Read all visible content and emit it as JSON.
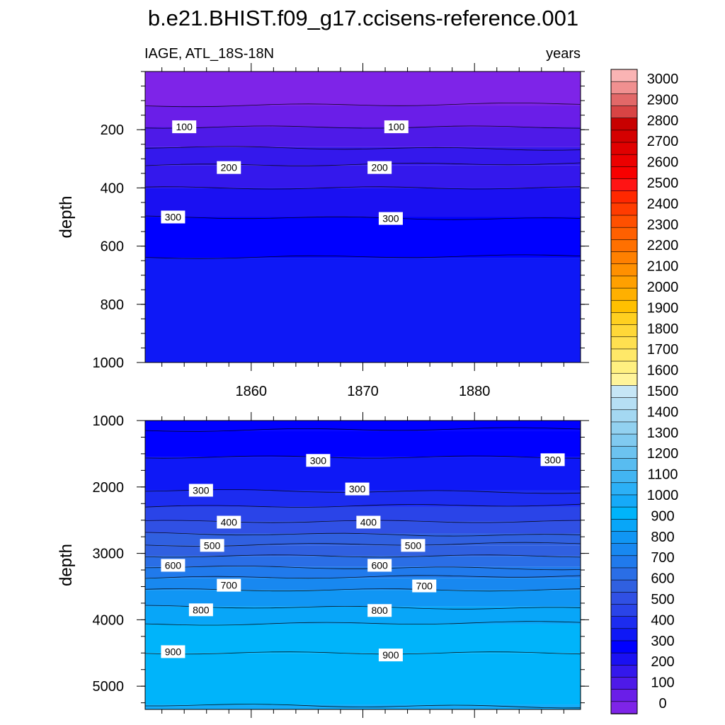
{
  "chart_data": {
    "type": "contour",
    "title": "b.e21.BHIST.f09_g17.ccisens-reference.001",
    "panels": [
      {
        "left_label": "IAGE, ATL_18S-18N",
        "right_label": "years",
        "ylabel": "depth",
        "ylim": [
          1000,
          0
        ],
        "yticks": [
          200,
          400,
          600,
          800,
          1000
        ],
        "xlim": [
          1850.5,
          1889.5
        ],
        "xticks": [
          "1860",
          "1870",
          "1880"
        ],
        "levels": [
          0,
          50,
          100,
          150,
          200,
          250,
          300,
          350
        ],
        "boundaries_depth": [
          118,
          191,
          260,
          323,
          400,
          500,
          640
        ],
        "contour_labels": [
          {
            "text": "100",
            "year": 1854,
            "depth": 190
          },
          {
            "text": "100",
            "year": 1873,
            "depth": 190
          },
          {
            "text": "200",
            "year": 1858,
            "depth": 330
          },
          {
            "text": "200",
            "year": 1871.5,
            "depth": 330
          },
          {
            "text": "300",
            "year": 1853,
            "depth": 500
          },
          {
            "text": "300",
            "year": 1872.5,
            "depth": 505
          }
        ]
      },
      {
        "left_label": "",
        "right_label": "",
        "ylabel": "depth",
        "ylim": [
          5350,
          1000
        ],
        "yticks": [
          1000,
          2000,
          3000,
          4000,
          5000
        ],
        "xlim": [
          1850.5,
          1889.5
        ],
        "xticks": [],
        "levels": [
          300,
          300,
          350,
          400,
          450,
          500,
          550,
          600,
          650,
          700,
          750,
          800,
          850,
          900,
          950,
          1000
        ],
        "boundaries_depth": [
          1150,
          1550,
          2050,
          2300,
          2520,
          2700,
          2880,
          3040,
          3200,
          3370,
          3550,
          3800,
          4070,
          4500,
          5280
        ],
        "contour_labels": [
          {
            "text": "300",
            "year": 1866,
            "depth": 1600
          },
          {
            "text": "300",
            "year": 1887,
            "depth": 1590
          },
          {
            "text": "300",
            "year": 1855.5,
            "depth": 2050
          },
          {
            "text": "300",
            "year": 1869.5,
            "depth": 2030
          },
          {
            "text": "400",
            "year": 1858,
            "depth": 2530
          },
          {
            "text": "400",
            "year": 1870.5,
            "depth": 2530
          },
          {
            "text": "500",
            "year": 1856.5,
            "depth": 2880
          },
          {
            "text": "500",
            "year": 1874.5,
            "depth": 2880
          },
          {
            "text": "600",
            "year": 1853,
            "depth": 3180
          },
          {
            "text": "600",
            "year": 1871.5,
            "depth": 3180
          },
          {
            "text": "700",
            "year": 1858,
            "depth": 3480
          },
          {
            "text": "700",
            "year": 1875.5,
            "depth": 3490
          },
          {
            "text": "800",
            "year": 1855.5,
            "depth": 3850
          },
          {
            "text": "800",
            "year": 1871.5,
            "depth": 3860
          },
          {
            "text": "900",
            "year": 1853,
            "depth": 4480
          },
          {
            "text": "900",
            "year": 1872.5,
            "depth": 4530
          }
        ]
      }
    ],
    "colorbar": {
      "labels": [
        "3000",
        "2900",
        "2800",
        "2700",
        "2600",
        "2500",
        "2400",
        "2300",
        "2200",
        "2100",
        "2000",
        "1900",
        "1800",
        "1700",
        "1600",
        "1500",
        "1400",
        "1300",
        "1200",
        "1100",
        "1000",
        "900",
        "800",
        "700",
        "600",
        "500",
        "400",
        "300",
        "200",
        "100",
        "0"
      ],
      "colors": [
        "#fab4b4",
        "#f09090",
        "#e26868",
        "#d84444",
        "#c80000",
        "#d40000",
        "#e00000",
        "#ec0000",
        "#f80000",
        "#ff1414",
        "#ff2800",
        "#ff3c00",
        "#ff5000",
        "#ff6000",
        "#ff7000",
        "#ff8000",
        "#ff9000",
        "#ffa000",
        "#ffb000",
        "#ffc000",
        "#ffd020",
        "#ffd838",
        "#ffe050",
        "#ffe868",
        "#fff080",
        "#fff49a",
        "#c6e6f6",
        "#b6dff4",
        "#a4d8f2",
        "#92d1f0",
        "#80caf0",
        "#6cc3f0",
        "#58bcf0",
        "#42b5f2",
        "#2cb0f6",
        "#16aaf8",
        "#00b4fa",
        "#08a6f8",
        "#1096f4",
        "#1888f0",
        "#207aec",
        "#2a6ee6",
        "#3060e0",
        "#3050e4",
        "#2a44e8",
        "#1c2cf0",
        "#0e18f6",
        "#0000ff",
        "#1a10f2",
        "#3418ec",
        "#4e1ae8",
        "#6a1ee8",
        "#7e24e8"
      ]
    }
  }
}
